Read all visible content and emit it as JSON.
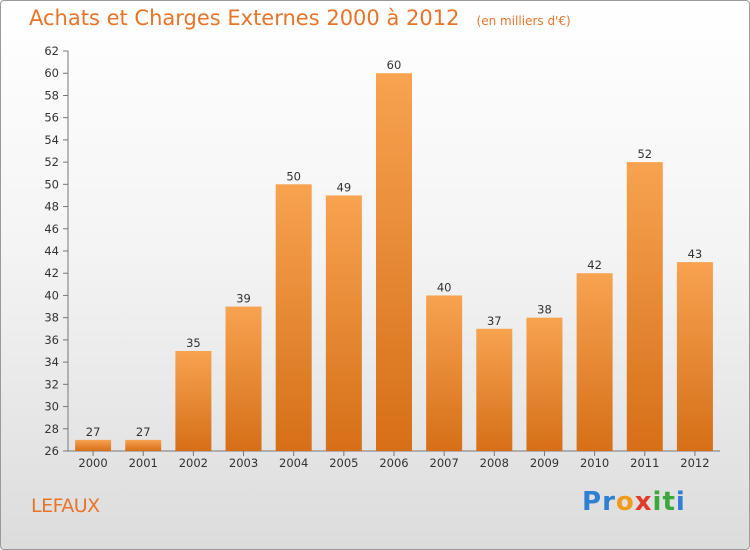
{
  "header": {
    "title": "Achats et Charges Externes 2000 à 2012",
    "subtitle": "(en milliers d'€)"
  },
  "footer": {
    "town": "LEFAUX",
    "logo_letters": [
      {
        "ch": "P",
        "color": "#2f7fd2"
      },
      {
        "ch": "r",
        "color": "#2f7fd2"
      },
      {
        "ch": "o",
        "color": "#f29a1a"
      },
      {
        "ch": "x",
        "color": "#e23b2a"
      },
      {
        "ch": "i",
        "color": "#3aa83a"
      },
      {
        "ch": "t",
        "color": "#3aa83a"
      },
      {
        "ch": "i",
        "color": "#2f7fd2"
      }
    ]
  },
  "colors": {
    "accent": "#e8742a",
    "bar_top": "#f7a350",
    "bar_bottom": "#d66f18"
  },
  "chart_data": {
    "type": "bar",
    "title": "Achats et Charges Externes 2000 à 2012",
    "subtitle": "(en milliers d'€)",
    "categories": [
      "2000",
      "2001",
      "2002",
      "2003",
      "2004",
      "2005",
      "2006",
      "2007",
      "2008",
      "2009",
      "2010",
      "2011",
      "2012"
    ],
    "values": [
      27,
      27,
      35,
      39,
      50,
      49,
      60,
      40,
      37,
      38,
      42,
      52,
      43
    ],
    "ylim": [
      26,
      62
    ],
    "yticks": [
      26,
      28,
      30,
      32,
      34,
      36,
      38,
      40,
      42,
      44,
      46,
      48,
      50,
      52,
      54,
      56,
      58,
      60,
      62
    ],
    "grid": false,
    "legend": "none"
  }
}
